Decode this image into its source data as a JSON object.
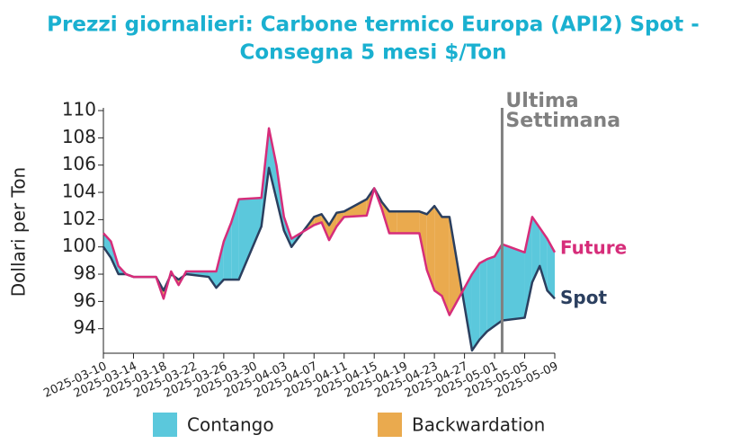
{
  "chart_data": {
    "type": "line",
    "title": [
      "Prezzi giornalieri: Carbone termico Europa (API2) Spot -",
      "Consegna 5 mesi $/Ton"
    ],
    "y_label": "Dollari per Ton",
    "x": [
      "2025-03-10",
      "2025-03-11",
      "2025-03-12",
      "2025-03-13",
      "2025-03-14",
      "2025-03-17",
      "2025-03-18",
      "2025-03-19",
      "2025-03-20",
      "2025-03-21",
      "2025-03-24",
      "2025-03-25",
      "2025-03-26",
      "2025-03-27",
      "2025-03-28",
      "2025-03-31",
      "2025-04-01",
      "2025-04-02",
      "2025-04-03",
      "2025-04-04",
      "2025-04-07",
      "2025-04-08",
      "2025-04-09",
      "2025-04-10",
      "2025-04-11",
      "2025-04-14",
      "2025-04-15",
      "2025-04-16",
      "2025-04-17",
      "2025-04-18",
      "2025-04-21",
      "2025-04-22",
      "2025-04-23",
      "2025-04-24",
      "2025-04-25",
      "2025-04-28",
      "2025-04-29",
      "2025-04-30",
      "2025-05-01",
      "2025-05-02",
      "2025-05-05",
      "2025-05-06",
      "2025-05-07",
      "2025-05-08",
      "2025-05-09"
    ],
    "series": [
      {
        "name": "Spot",
        "color": "#2b3f5f",
        "values": [
          100.0,
          99.2,
          98.0,
          98.0,
          97.8,
          97.8,
          96.8,
          98.0,
          97.6,
          98.0,
          97.8,
          97.0,
          97.6,
          97.6,
          97.6,
          101.5,
          105.8,
          103.5,
          101.2,
          100.0,
          102.2,
          102.4,
          101.6,
          102.5,
          102.6,
          103.5,
          104.3,
          103.3,
          102.6,
          102.6,
          102.6,
          102.4,
          103.0,
          102.2,
          102.2,
          92.4,
          93.2,
          93.8,
          94.2,
          94.6,
          94.8,
          97.4,
          98.6,
          96.8,
          96.2
        ]
      },
      {
        "name": "Future",
        "color": "#d62d7a",
        "values": [
          101.0,
          100.4,
          98.6,
          98.0,
          97.8,
          97.8,
          96.2,
          98.2,
          97.2,
          98.2,
          98.2,
          98.2,
          100.4,
          101.8,
          103.5,
          103.6,
          108.7,
          106.0,
          102.2,
          100.6,
          101.6,
          101.8,
          100.5,
          101.5,
          102.2,
          102.3,
          104.3,
          102.8,
          101.0,
          101.0,
          101.0,
          98.3,
          96.8,
          96.4,
          95.0,
          98.0,
          98.8,
          99.1,
          99.3,
          100.2,
          99.6,
          102.2,
          101.4,
          100.6,
          99.6
        ]
      }
    ],
    "fills": [
      {
        "name": "Contango",
        "color": "#5bc8dc"
      },
      {
        "name": "Backwardation",
        "color": "#eaaa4e"
      }
    ],
    "annotation": {
      "x": "2025-05-02",
      "label": [
        "Ultima",
        "Settimana"
      ],
      "color": "#808080"
    },
    "xlim": [
      "2025-03-10",
      "2025-05-09"
    ],
    "xticks": [
      "2025-03-10",
      "2025-03-14",
      "2025-03-18",
      "2025-03-22",
      "2025-03-26",
      "2025-03-30",
      "2025-04-03",
      "2025-04-07",
      "2025-04-11",
      "2025-04-15",
      "2025-04-19",
      "2025-04-23",
      "2025-04-27",
      "2025-05-01",
      "2025-05-05",
      "2025-05-09"
    ],
    "ylim": [
      92.2,
      110.2
    ],
    "yticks": [
      94,
      96,
      98,
      100,
      102,
      104,
      106,
      108,
      110
    ],
    "title_color": "#1ab0d0"
  }
}
